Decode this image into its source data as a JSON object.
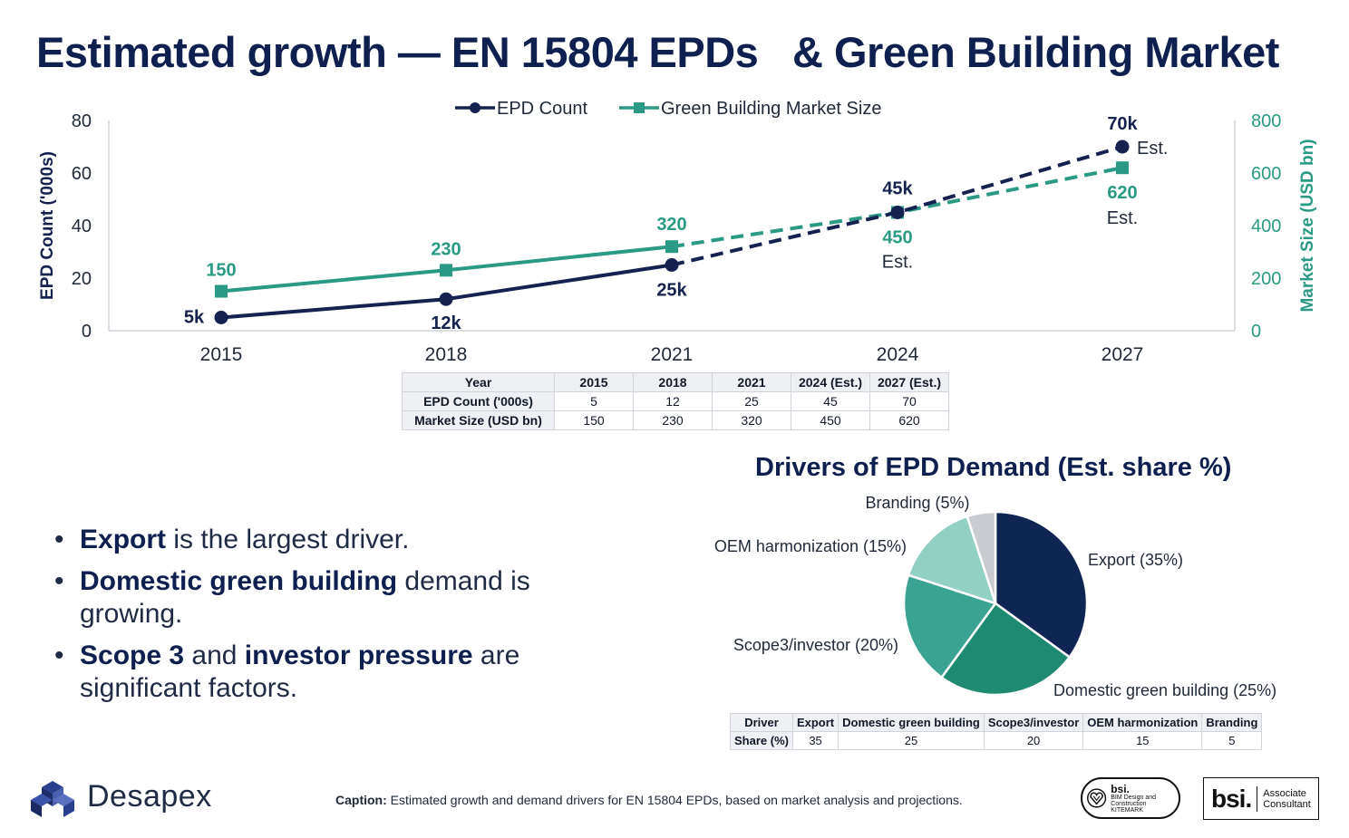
{
  "header": {
    "title": "Estimated growth — EN 15804 EPDs   & Green Building Market"
  },
  "chart_data": [
    {
      "type": "line",
      "x": [
        "2015",
        "2018",
        "2021",
        "2024",
        "2027"
      ],
      "series": [
        {
          "name": "EPD Count",
          "values": [
            5,
            12,
            25,
            45,
            70
          ],
          "axis": "left",
          "color": "#15214f",
          "data_labels": [
            "5k",
            "12k",
            "25k",
            "45k",
            "70k"
          ],
          "estimated_from_index": 2
        },
        {
          "name": "Green Building Market Size",
          "values": [
            150,
            230,
            320,
            450,
            620
          ],
          "axis": "right",
          "color": "#2a9a84",
          "data_labels": [
            "150",
            "230",
            "320",
            "450",
            "620"
          ],
          "estimated_from_index": 2
        }
      ],
      "annotations": {
        "est_label": "Est."
      },
      "ylabel": "EPD Count ('000s)",
      "y2label": "Market Size (USD bn)",
      "ylim": [
        0,
        80
      ],
      "y2lim": [
        0,
        800
      ],
      "yticks": [
        "0",
        "20",
        "40",
        "60",
        "80"
      ],
      "y2ticks": [
        "0",
        "200",
        "400",
        "600",
        "800"
      ],
      "legend": "top-center",
      "grid": false
    },
    {
      "type": "pie",
      "title": "Drivers of EPD Demand (Est. share %)",
      "labels": [
        "Export",
        "Domestic green building",
        "Scope3/investor",
        "OEM harmonization",
        "Branding"
      ],
      "slice_labels": [
        "Export (35%)",
        "Domestic green building (25%)",
        "Scope3/investor (20%)",
        "OEM harmonization (15%)",
        "Branding (5%)"
      ],
      "values": [
        35,
        25,
        20,
        15,
        5
      ],
      "colors": [
        "#0f2654",
        "#1e8a72",
        "#3aa391",
        "#93d0c4",
        "#c9cbd0"
      ]
    }
  ],
  "growth_table": {
    "header": [
      "Year",
      "2015",
      "2018",
      "2021",
      "2024 (Est.)",
      "2027 (Est.)"
    ],
    "rows": [
      [
        "EPD Count ('000s)",
        "5",
        "12",
        "25",
        "45",
        "70"
      ],
      [
        "Market Size (USD bn)",
        "150",
        "230",
        "320",
        "450",
        "620"
      ]
    ]
  },
  "drivers_table": {
    "header": [
      "Driver",
      "Export",
      "Domestic green building",
      "Scope3/investor",
      "OEM harmonization",
      "Branding"
    ],
    "row": [
      "Share (%)",
      "35",
      "25",
      "20",
      "15",
      "5"
    ]
  },
  "bullets": [
    {
      "bold": "Export",
      "rest": " is the largest driver."
    },
    {
      "bold": "Domestic green building",
      "rest": " demand is growing."
    },
    {
      "bold": "Scope 3",
      "mid": " and ",
      "bold2": "investor pressure",
      "rest": " are significant factors."
    }
  ],
  "footer": {
    "logo_text": "Desapex",
    "caption_label": "Caption:",
    "caption_text": " Estimated growth and demand drivers for EN 15804 EPDs, based on market analysis and projections.",
    "badge1_big": "bsi.",
    "badge1_small": "BIM Design and Construction KITEMARK",
    "badge2_brand": "bsi.",
    "badge2_line1": "Associate",
    "badge2_line2": "Consultant"
  }
}
